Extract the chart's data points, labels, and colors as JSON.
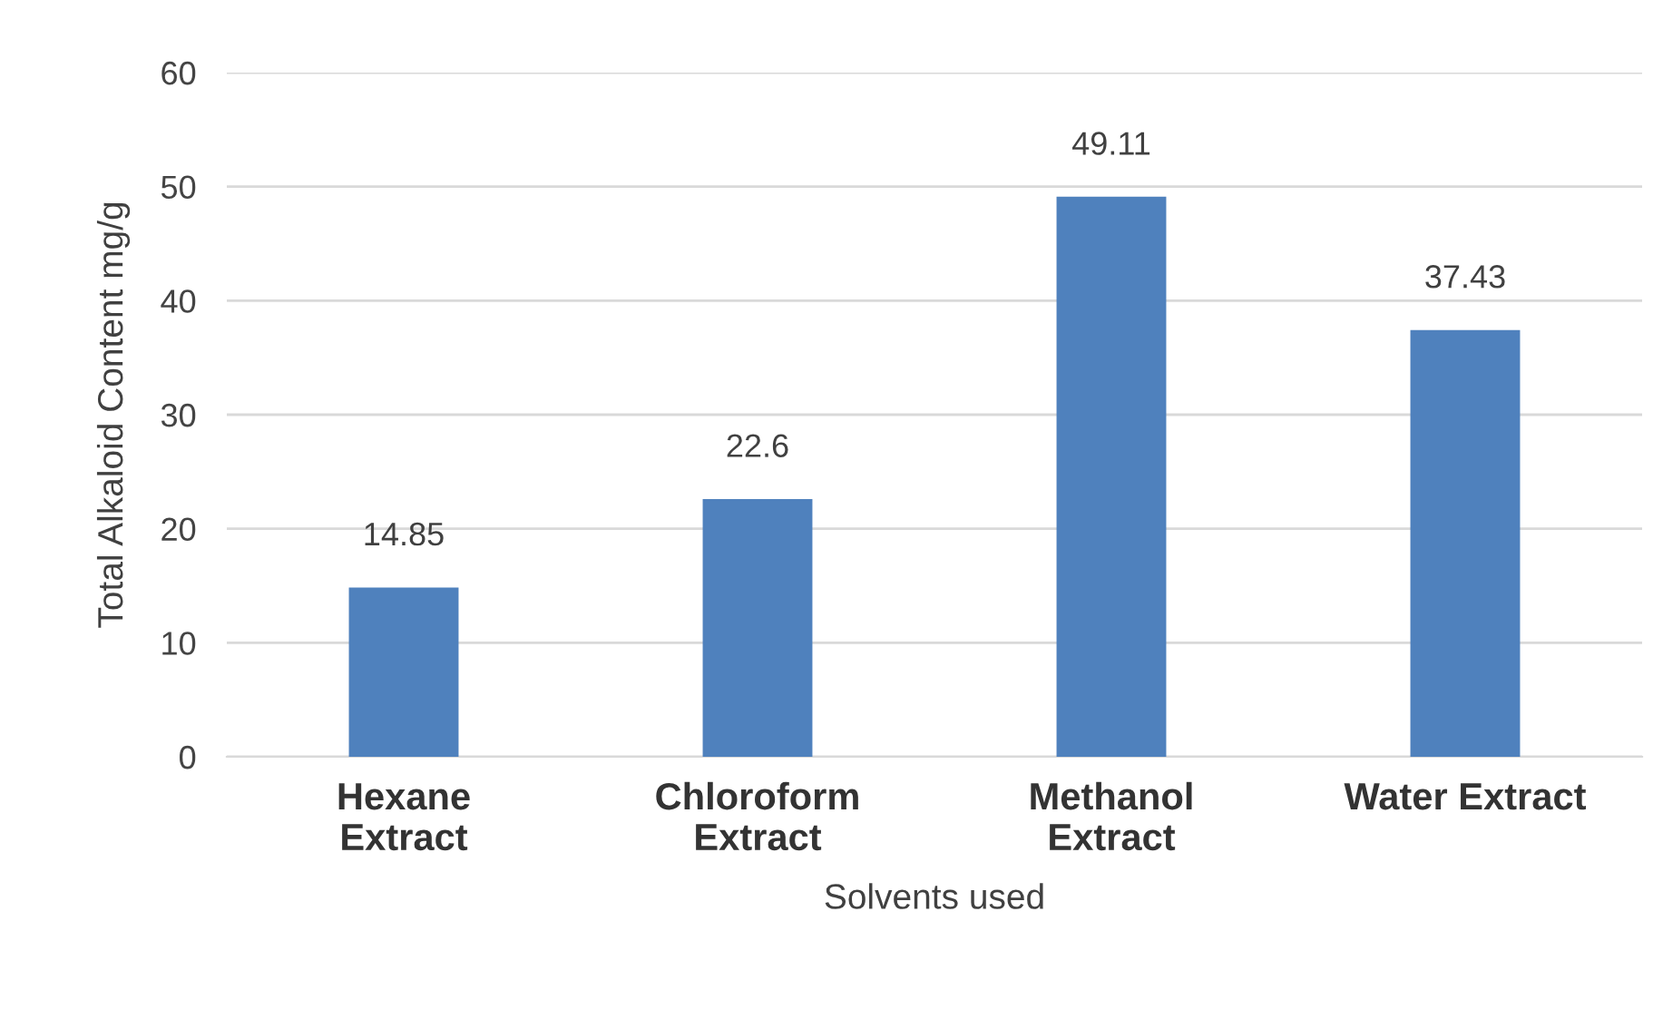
{
  "chart_data": {
    "type": "bar",
    "xlabel": "Solvents used",
    "ylabel": "Total Alkaloid Content mg/g",
    "categories": [
      "Hexane\nExtract",
      "Chloroform\nExtract",
      "Methanol\nExtract",
      "Water Extract"
    ],
    "values": [
      14.85,
      22.6,
      49.11,
      37.43
    ],
    "color": "#4f81bd",
    "ylim": [
      0,
      60
    ],
    "yticks": [
      0,
      10,
      20,
      30,
      40,
      50,
      60
    ],
    "grid": "y",
    "data_labels": true
  }
}
